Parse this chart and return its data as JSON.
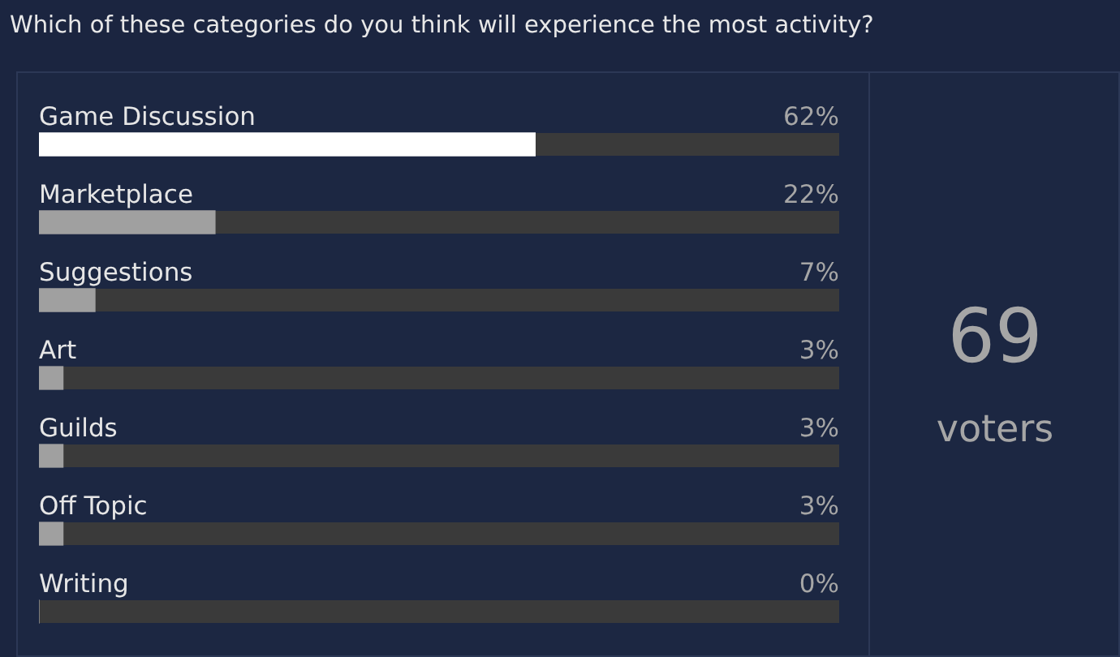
{
  "chart_data": {
    "type": "bar",
    "orientation": "horizontal",
    "title": "Which of these categories do you think will experience the most activity?",
    "categories": [
      "Game Discussion",
      "Marketplace",
      "Suggestions",
      "Art",
      "Guilds",
      "Off Topic",
      "Writing"
    ],
    "values": [
      62,
      22,
      7,
      3,
      3,
      3,
      0
    ],
    "colors": [
      "#ffffff",
      "#a0a0a0",
      "#a0a0a0",
      "#a0a0a0",
      "#a0a0a0",
      "#a0a0a0",
      "#a0a0a0"
    ],
    "value_labels": [
      "62%",
      "22%",
      "7%",
      "3%",
      "3%",
      "3%",
      "0%"
    ],
    "xlim": [
      0,
      100
    ],
    "tick_labels": false,
    "legend": false,
    "annotations": [
      "69",
      "voters"
    ]
  }
}
